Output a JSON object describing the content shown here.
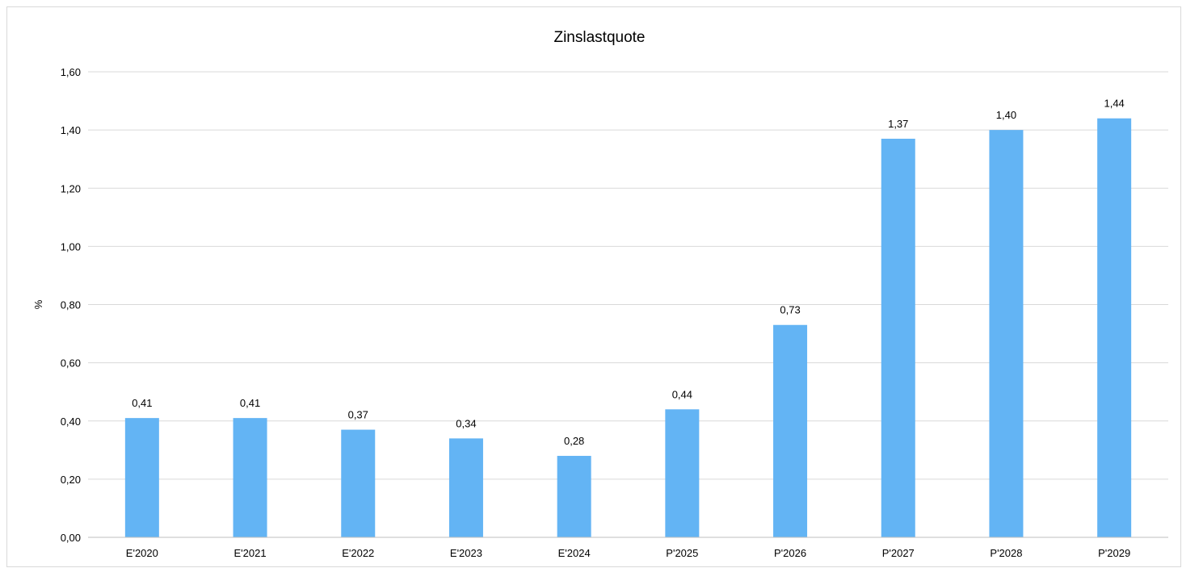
{
  "chart_data": {
    "type": "bar",
    "title": "Zinslastquote",
    "xlabel": "",
    "ylabel": "%",
    "categories": [
      "E'2020",
      "E'2021",
      "E'2022",
      "E'2023",
      "E'2024",
      "P'2025",
      "P'2026",
      "P'2027",
      "P'2028",
      "P'2029"
    ],
    "values": [
      0.41,
      0.41,
      0.37,
      0.34,
      0.28,
      0.44,
      0.73,
      1.37,
      1.4,
      1.44
    ],
    "value_labels": [
      "0,41",
      "0,41",
      "0,37",
      "0,34",
      "0,28",
      "0,44",
      "0,73",
      "1,37",
      "1,40",
      "1,44"
    ],
    "ylim": [
      0,
      1.6
    ],
    "yticks": [
      0,
      0.2,
      0.4,
      0.6,
      0.8,
      1.0,
      1.2,
      1.4,
      1.6
    ],
    "ytick_labels": [
      "0,00",
      "0,20",
      "0,40",
      "0,60",
      "0,80",
      "1,00",
      "1,20",
      "1,40",
      "1,60"
    ],
    "grid": true,
    "legend": "none",
    "colors": {
      "bar": "#63b4f4",
      "grid": "#d9d9d9",
      "axis": "#bfbfbf",
      "text": "#000000"
    }
  }
}
